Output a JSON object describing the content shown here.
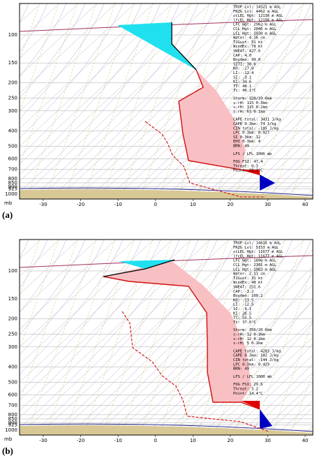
{
  "panels": [
    {
      "label": "(a)",
      "pressure_unit": "mb",
      "pressure_ticks": [
        100,
        150,
        200,
        250,
        300,
        400,
        500,
        600,
        700,
        800,
        850,
        900,
        925,
        1000
      ],
      "temperature_ticks": [
        -30,
        -20,
        -10,
        0,
        10,
        20,
        30,
        40
      ],
      "stats": [
        [
          "TROP Lvl: 14521 m AGL",
          "FRZG Lvl:  4462 m AGL",
          "ccLEL Hgt: 12136 m AGL",
          "lfcEL Hgt: 12156 m AGL",
          "LFC Hgt:  2962 m AGL",
          "CCL Hgt:  2046 m AGL",
          "LCL Hgt:  1030 m AGL",
          "Water:  4.16 cm",
          "T2Gust:  51 kt",
          "WindEx:  78 kt",
          "SWEAT: 427.6",
          "CAP:  4.0",
          "Boyden: 99.0",
          "SITI: 38.6",
          "KO: -27.0",
          "LI: -12.4",
          "SI: -3.1",
          "KI: 34.6",
          "TT: 48.1",
          "Tc: 40.1°C"
        ],
        [
          "Storm: 328/19  6km",
          "s-rH: 115  0-3km",
          "s-rH: 115  0-2km",
          "s-rH:  63  0-1km"
        ],
        [
          "CAPE total: 3431 J/kg",
          "CAPE 0-3km:   74 J/kg",
          "CIN total: -185 J/kg",
          "LPC 0-3km: 0.927",
          "SI 0-3km: 12",
          "EHI 0-3km: 4",
          "BRN: 49"
        ],
        [
          "LFS / LFL 1006 mb"
        ],
        [
          "FOG FSI: 47.4",
          "Threat: 0.3",
          "Point: 19.1°C"
        ]
      ]
    },
    {
      "label": "(b)",
      "pressure_unit": "mb",
      "pressure_ticks": [
        100,
        150,
        200,
        250,
        300,
        400,
        500,
        600,
        700,
        800,
        850,
        900,
        925,
        1000
      ],
      "temperature_ticks": [
        -30,
        -20,
        -10,
        0,
        10,
        20,
        30,
        40
      ],
      "stats": [
        [
          "TROP Lvl: 14616 m AGL",
          "FRZG Lvl:  5153 m AGL",
          "ccLEL Hgt: 11677 m AGL",
          "lfcEL Hgt: 11677 m AGL",
          "LFC Hgt:  1896 m AGL",
          "CCL Hgt:  2301 m AGL",
          "LCL Hgt:  1083 m AGL",
          "Water:  2.11 cm",
          "T2Gust:  31 kt",
          "WindEx:  48 kt",
          "SWEAT: 251.6",
          "CAP: -3.2",
          "Boyden: 100.2",
          "KO: -13.5",
          "LI: -12.5",
          "SI: -9.1",
          "KI: 26.5",
          "TT: 55.5",
          "Tc: 37.6°C"
        ],
        [
          "Storm: 356/20  6km",
          "s-rH:  12  0-3km",
          "s-rH:  12  0-2km",
          "s-rH:   5  0-1km"
        ],
        [
          "CAPE total: 4283 J/kg",
          "CAPE 0-3km:  102 J/kg",
          "CIN total: -144 J/kg",
          "LPC 0-3km: 0.429",
          "BRN: 49"
        ],
        [
          "LFS / LFL 1000 mb"
        ],
        [
          "FOG FSI: 29.6",
          "Threat: 3.2",
          "Point: 14.4°C"
        ]
      ]
    }
  ]
}
